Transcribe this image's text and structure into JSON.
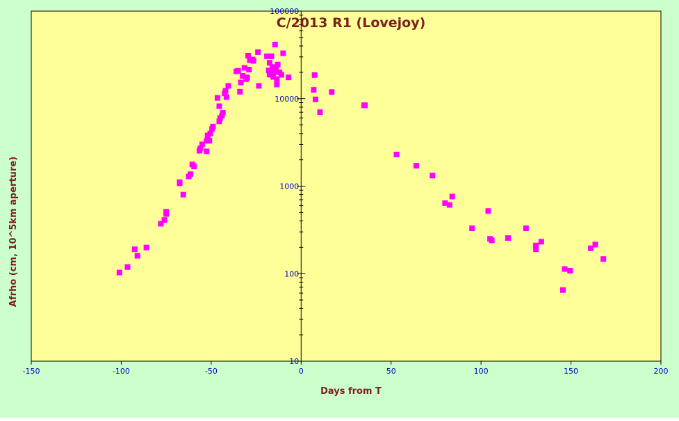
{
  "chart_data": {
    "type": "scatter",
    "title": "C/2013 R1 (Lovejoy)",
    "xlabel": "Days from T",
    "ylabel": "Afrho (cm, 10^5km aperture)",
    "xlim": [
      -150,
      200
    ],
    "ylim": [
      10,
      100000
    ],
    "yscale": "log",
    "grid": false,
    "legend": "none",
    "xticks": [
      -150,
      -100,
      -50,
      0,
      50,
      100,
      150,
      200
    ],
    "xtick_labels": [
      "-150",
      "-100",
      "-50",
      "0",
      "50",
      "100",
      "150",
      "200"
    ],
    "yticks": [
      10,
      100,
      1000,
      10000,
      100000
    ],
    "ytick_labels": [
      "10",
      "100",
      "1000",
      "10000",
      "100000"
    ],
    "colors": {
      "outer_background": "#ccffcc",
      "plot_background": "#ffff99",
      "marker": "#ff00ff",
      "title": "#7b1f1f",
      "tick_labels": "#0000c0"
    },
    "series": [
      {
        "points": [
          [
            -101,
            103
          ],
          [
            -96.5,
            119
          ],
          [
            -92.5,
            190
          ],
          [
            -91,
            160
          ],
          [
            -86,
            199
          ],
          [
            -78,
            372
          ],
          [
            -76,
            410
          ],
          [
            -75,
            480
          ],
          [
            -75,
            510
          ],
          [
            -67.5,
            1080
          ],
          [
            -67.5,
            1110
          ],
          [
            -65.5,
            800
          ],
          [
            -62.5,
            1290
          ],
          [
            -61.5,
            1370
          ],
          [
            -60.5,
            1770
          ],
          [
            -59.5,
            1680
          ],
          [
            -56.5,
            2540
          ],
          [
            -56,
            2700
          ],
          [
            -55,
            3000
          ],
          [
            -52.5,
            2500
          ],
          [
            -52.5,
            3300
          ],
          [
            -52,
            3800
          ],
          [
            -51,
            3300
          ],
          [
            -50.5,
            4000
          ],
          [
            -49.5,
            4500
          ],
          [
            -49,
            4800
          ],
          [
            -46.5,
            10200
          ],
          [
            -45.5,
            8200
          ],
          [
            -45.5,
            5500
          ],
          [
            -45,
            6000
          ],
          [
            -44,
            6400
          ],
          [
            -43.5,
            6900
          ],
          [
            -42.5,
            11500
          ],
          [
            -42,
            12300
          ],
          [
            -41.5,
            10400
          ],
          [
            -40.5,
            14000
          ],
          [
            -36,
            20500
          ],
          [
            -35,
            20800
          ],
          [
            -34,
            12000
          ],
          [
            -33.5,
            15300
          ],
          [
            -32.5,
            18200
          ],
          [
            -31.5,
            22500
          ],
          [
            -30.5,
            16700
          ],
          [
            -30,
            17500
          ],
          [
            -29.5,
            31000
          ],
          [
            -29,
            21500
          ],
          [
            -28.5,
            27500
          ],
          [
            -27,
            28000
          ],
          [
            -26.5,
            27000
          ],
          [
            -24,
            34000
          ],
          [
            -23.5,
            14000
          ],
          [
            -19,
            30500
          ],
          [
            -18,
            21000
          ],
          [
            -17.5,
            25700
          ],
          [
            -17.5,
            18800
          ],
          [
            -16.5,
            30500
          ],
          [
            -16,
            23000
          ],
          [
            -15.5,
            17700
          ],
          [
            -15,
            20300
          ],
          [
            -14.5,
            41500
          ],
          [
            -14,
            22100
          ],
          [
            -13.5,
            16700
          ],
          [
            -13.5,
            14500
          ],
          [
            -13,
            24500
          ],
          [
            -12,
            20000
          ],
          [
            -11,
            18700
          ],
          [
            -10,
            33000
          ],
          [
            -7,
            17500
          ],
          [
            7,
            12600
          ],
          [
            7.5,
            18600
          ],
          [
            8,
            9800
          ],
          [
            10.5,
            7000
          ],
          [
            17,
            11900
          ],
          [
            35,
            8400
          ],
          [
            35.5,
            8400
          ],
          [
            53,
            2300
          ],
          [
            64,
            1710
          ],
          [
            73,
            1320
          ],
          [
            80,
            640
          ],
          [
            82.5,
            610
          ],
          [
            84,
            760
          ],
          [
            95,
            330
          ],
          [
            104,
            520
          ],
          [
            105,
            250
          ],
          [
            106,
            240
          ],
          [
            115,
            255
          ],
          [
            125,
            330
          ],
          [
            130.5,
            210
          ],
          [
            130.5,
            190
          ],
          [
            133.5,
            232
          ],
          [
            145.5,
            65
          ],
          [
            146.5,
            113
          ],
          [
            149.5,
            108
          ],
          [
            161,
            195
          ],
          [
            163.5,
            215
          ],
          [
            168,
            147
          ]
        ]
      }
    ]
  }
}
